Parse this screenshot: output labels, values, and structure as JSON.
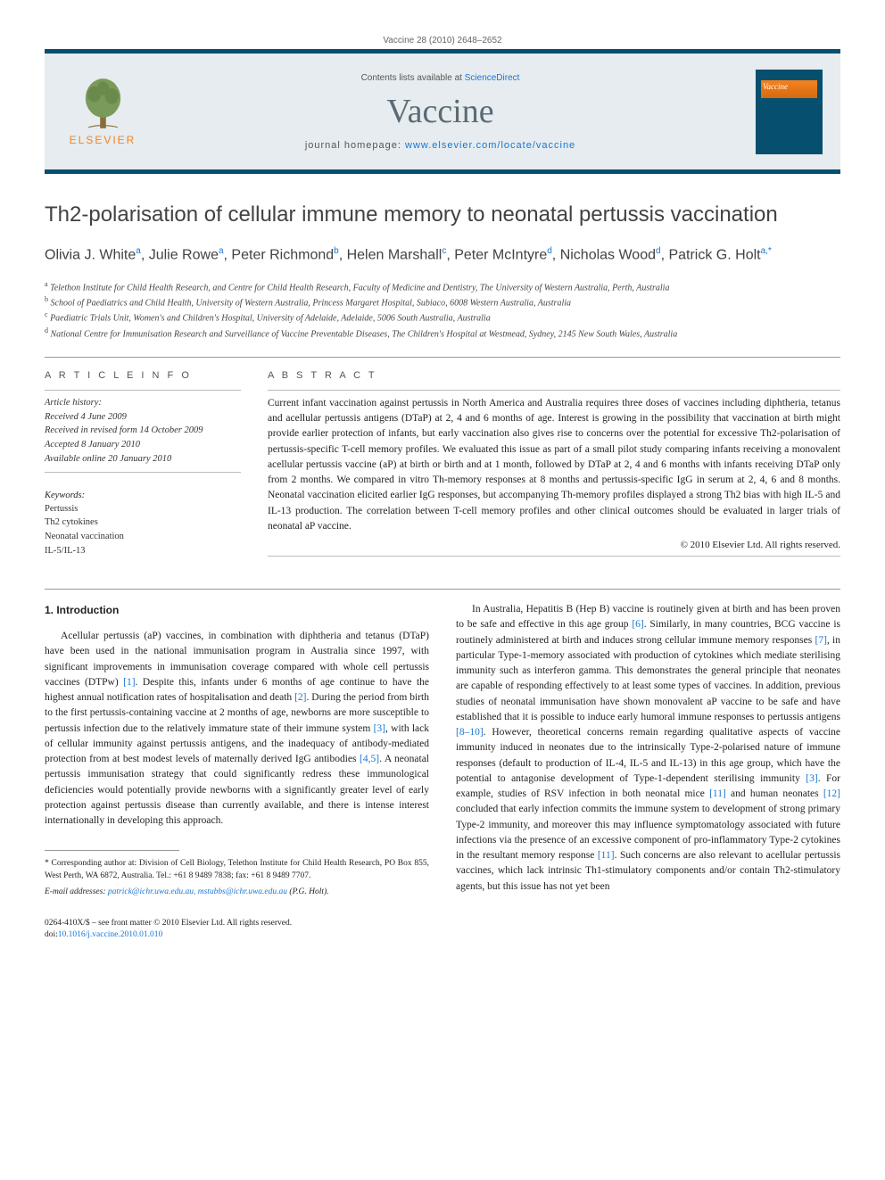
{
  "journal": {
    "page_range": "Vaccine 28 (2010) 2648–2652",
    "contents_prefix": "Contents lists available at ",
    "contents_link": "ScienceDirect",
    "name": "Vaccine",
    "homepage_prefix": "journal homepage: ",
    "homepage_url": "www.elsevier.com/locate/vaccine",
    "publisher_logo_text": "ELSEVIER",
    "cover_label": "Vaccine"
  },
  "article": {
    "title": "Th2-polarisation of cellular immune memory to neonatal pertussis vaccination",
    "authors_html": "Olivia J. White<sup>a</sup>, Julie Rowe<sup>a</sup>, Peter Richmond<sup>b</sup>, Helen Marshall<sup>c</sup>, Peter McIntyre<sup>d</sup>, Nicholas Wood<sup>d</sup>, Patrick G. Holt<sup>a,*</sup>",
    "affiliations": [
      "a Telethon Institute for Child Health Research, and Centre for Child Health Research, Faculty of Medicine and Dentistry, The University of Western Australia, Perth, Australia",
      "b School of Paediatrics and Child Health, University of Western Australia, Princess Margaret Hospital, Subiaco, 6008 Western Australia, Australia",
      "c Paediatric Trials Unit, Women's and Children's Hospital, University of Adelaide, Adelaide, 5006 South Australia, Australia",
      "d National Centre for Immunisation Research and Surveillance of Vaccine Preventable Diseases, The Children's Hospital at Westmead, Sydney, 2145 New South Wales, Australia"
    ]
  },
  "info": {
    "label": "A R T I C L E   I N F O",
    "history_label": "Article history:",
    "history": [
      "Received 4 June 2009",
      "Received in revised form 14 October 2009",
      "Accepted 8 January 2010",
      "Available online 20 January 2010"
    ],
    "keywords_label": "Keywords:",
    "keywords": [
      "Pertussis",
      "Th2 cytokines",
      "Neonatal vaccination",
      "IL-5/IL-13"
    ]
  },
  "abstract": {
    "label": "A B S T R A C T",
    "text": "Current infant vaccination against pertussis in North America and Australia requires three doses of vaccines including diphtheria, tetanus and acellular pertussis antigens (DTaP) at 2, 4 and 6 months of age. Interest is growing in the possibility that vaccination at birth might provide earlier protection of infants, but early vaccination also gives rise to concerns over the potential for excessive Th2-polarisation of pertussis-specific T-cell memory profiles. We evaluated this issue as part of a small pilot study comparing infants receiving a monovalent acellular pertussis vaccine (aP) at birth or birth and at 1 month, followed by DTaP at 2, 4 and 6 months with infants receiving DTaP only from 2 months. We compared in vitro Th-memory responses at 8 months and pertussis-specific IgG in serum at 2, 4, 6 and 8 months. Neonatal vaccination elicited earlier IgG responses, but accompanying Th-memory profiles displayed a strong Th2 bias with high IL-5 and IL-13 production. The correlation between T-cell memory profiles and other clinical outcomes should be evaluated in larger trials of neonatal aP vaccine.",
    "copyright": "© 2010 Elsevier Ltd. All rights reserved."
  },
  "body": {
    "intro_heading": "1. Introduction",
    "col1": "Acellular pertussis (aP) vaccines, in combination with diphtheria and tetanus (DTaP) have been used in the national immunisation program in Australia since 1997, with significant improvements in immunisation coverage compared with whole cell pertussis vaccines (DTPw) [1]. Despite this, infants under 6 months of age continue to have the highest annual notification rates of hospitalisation and death [2]. During the period from birth to the first pertussis-containing vaccine at 2 months of age, newborns are more susceptible to pertussis infection due to the relatively immature state of their immune system [3], with lack of cellular immunity against pertussis antigens, and the inadequacy of antibody-mediated protection from at best modest levels of maternally derived IgG antibodies [4,5]. A neonatal pertussis immunisation strategy that could significantly redress these immunological deficiencies would potentially provide newborns with a significantly greater level of early protection against pertussis disease than currently available, and there is intense interest internationally in developing this approach.",
    "col2": "In Australia, Hepatitis B (Hep B) vaccine is routinely given at birth and has been proven to be safe and effective in this age group [6]. Similarly, in many countries, BCG vaccine is routinely administered at birth and induces strong cellular immune memory responses [7], in particular Type-1-memory associated with production of cytokines which mediate sterilising immunity such as interferon gamma. This demonstrates the general principle that neonates are capable of responding effectively to at least some types of vaccines. In addition, previous studies of neonatal immunisation have shown monovalent aP vaccine to be safe and have established that it is possible to induce early humoral immune responses to pertussis antigens [8–10]. However, theoretical concerns remain regarding qualitative aspects of vaccine immunity induced in neonates due to the intrinsically Type-2-polarised nature of immune responses (default to production of IL-4, IL-5 and IL-13) in this age group, which have the potential to antagonise development of Type-1-dependent sterilising immunity [3]. For example, studies of RSV infection in both neonatal mice [11] and human neonates [12] concluded that early infection commits the immune system to development of strong primary Type-2 immunity, and moreover this may influence symptomatology associated with future infections via the presence of an excessive component of pro-inflammatory Type-2 cytokines in the resultant memory response [11]. Such concerns are also relevant to acellular pertussis vaccines, which lack intrinsic Th1-stimulatory components and/or contain Th2-stimulatory agents, but this issue has not yet been"
  },
  "footnote": {
    "corr": "* Corresponding author at: Division of Cell Biology, Telethon Institute for Child Health Research, PO Box 855, West Perth, WA 6872, Australia. Tel.: +61 8 9489 7838; fax: +61 8 9489 7707.",
    "email_label": "E-mail addresses:",
    "emails": "patrick@ichr.uwa.edu.au, mstubbs@ichr.uwa.edu.au",
    "email_tail": " (P.G. Holt).",
    "issn": "0264-410X/$ – see front matter © 2010 Elsevier Ltd. All rights reserved.",
    "doi_prefix": "doi:",
    "doi": "10.1016/j.vaccine.2010.01.010"
  },
  "colors": {
    "brand_bar": "#064f6e",
    "header_bg": "#e6ecef",
    "link": "#1976d2",
    "orange": "#f58220",
    "text": "#222222",
    "muted": "#555555"
  }
}
